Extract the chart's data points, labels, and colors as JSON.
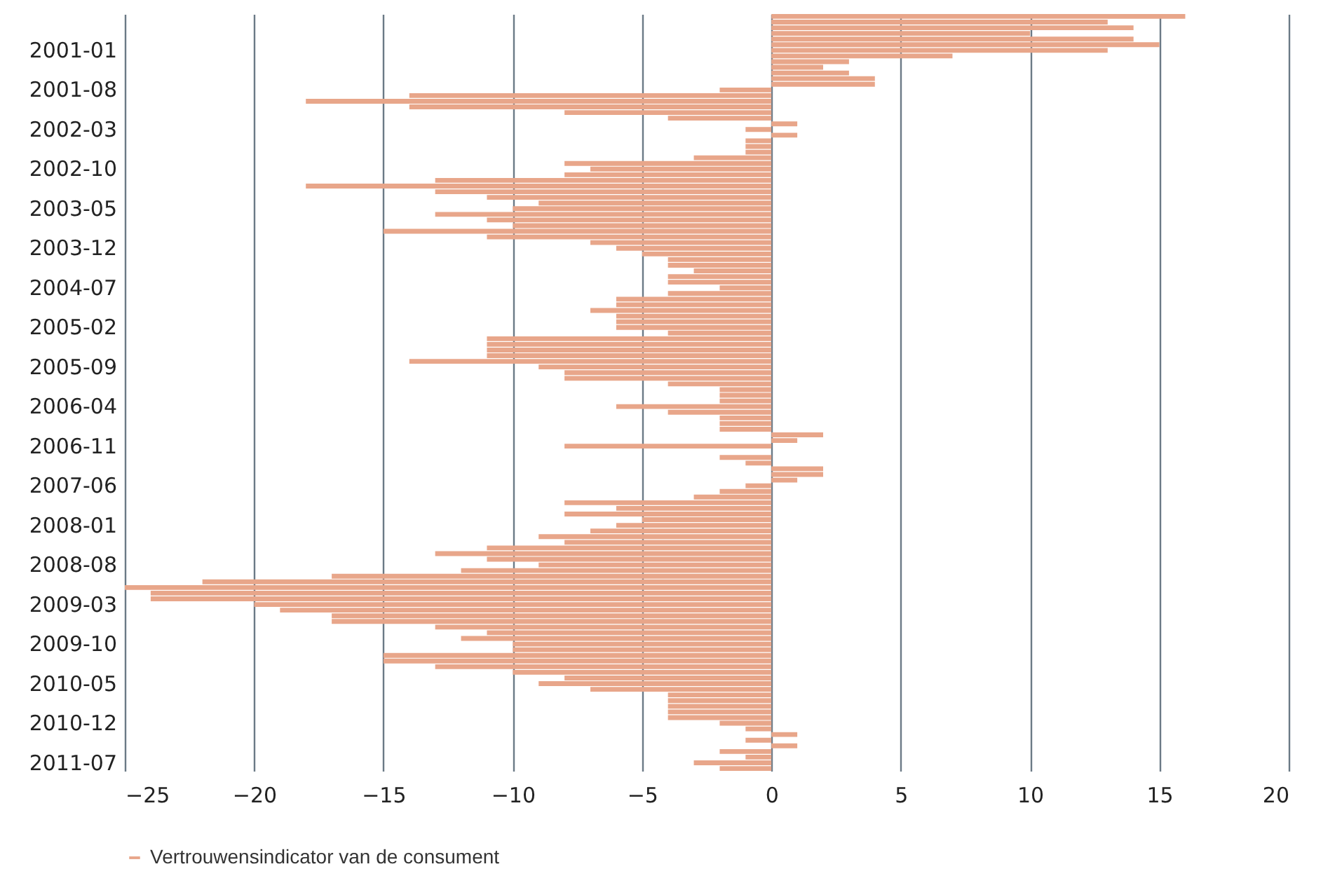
{
  "chart_data": {
    "type": "bar",
    "orientation": "horizontal",
    "categories": [
      null,
      null,
      null,
      null,
      null,
      null,
      "2001-01",
      null,
      null,
      null,
      null,
      null,
      null,
      "2001-08",
      null,
      null,
      null,
      null,
      null,
      null,
      "2002-03",
      null,
      null,
      null,
      null,
      null,
      null,
      "2002-10",
      null,
      null,
      null,
      null,
      null,
      null,
      "2003-05",
      null,
      null,
      null,
      null,
      null,
      null,
      "2003-12",
      null,
      null,
      null,
      null,
      null,
      null,
      "2004-07",
      null,
      null,
      null,
      null,
      null,
      null,
      "2005-02",
      null,
      null,
      null,
      null,
      null,
      null,
      "2005-09",
      null,
      null,
      null,
      null,
      null,
      null,
      "2006-04",
      null,
      null,
      null,
      null,
      null,
      null,
      "2006-11",
      null,
      null,
      null,
      null,
      null,
      null,
      "2007-06",
      null,
      null,
      null,
      null,
      null,
      null,
      "2008-01",
      null,
      null,
      null,
      null,
      null,
      null,
      "2008-08",
      null,
      null,
      null,
      null,
      null,
      null,
      "2009-03",
      null,
      null,
      null,
      null,
      null,
      null,
      "2009-10",
      null,
      null,
      null,
      null,
      null,
      null,
      "2010-05",
      null,
      null,
      null,
      null,
      null,
      null,
      "2010-12",
      null,
      null,
      null,
      null,
      null,
      null,
      "2011-07",
      null
    ],
    "series": [
      {
        "name": "Vertrouwensindicator van de consument",
        "color": "#e8a68a",
        "values": [
          16,
          13,
          14,
          10,
          14,
          15,
          13,
          7,
          3,
          2,
          3,
          4,
          4,
          -2,
          -14,
          -18,
          -14,
          -8,
          -4,
          1,
          -1,
          1,
          -1,
          -1,
          -1,
          -3,
          -8,
          -7,
          -8,
          -13,
          -18,
          -13,
          -11,
          -9,
          -10,
          -13,
          -11,
          -10,
          -15,
          -11,
          -7,
          -6,
          -5,
          -4,
          -4,
          -3,
          -4,
          -4,
          -2,
          -4,
          -6,
          -6,
          -7,
          -6,
          -6,
          -6,
          -4,
          -11,
          -11,
          -11,
          -11,
          -14,
          -9,
          -8,
          -8,
          -4,
          -2,
          -2,
          -2,
          -6,
          -4,
          -2,
          -2,
          -2,
          2,
          1,
          -8,
          0,
          -2,
          -1,
          2,
          2,
          1,
          -1,
          -2,
          -3,
          -8,
          -6,
          -8,
          -5,
          -6,
          -7,
          -9,
          -8,
          -11,
          -13,
          -11,
          -9,
          -12,
          -17,
          -22,
          -25,
          -24,
          -24,
          -20,
          -19,
          -17,
          -17,
          -13,
          -11,
          -12,
          -10,
          -10,
          -15,
          -15,
          -13,
          -10,
          -8,
          -9,
          -7,
          -4,
          -4,
          -4,
          -4,
          -4,
          -2,
          -1,
          1,
          -1,
          1,
          -2,
          -1,
          -3,
          -2
        ]
      }
    ],
    "xlim": [
      -25,
      20
    ],
    "xticks": [
      -25,
      -20,
      -15,
      -10,
      -5,
      0,
      5,
      10,
      15,
      20
    ],
    "grid": "x",
    "legend": "bottom"
  }
}
